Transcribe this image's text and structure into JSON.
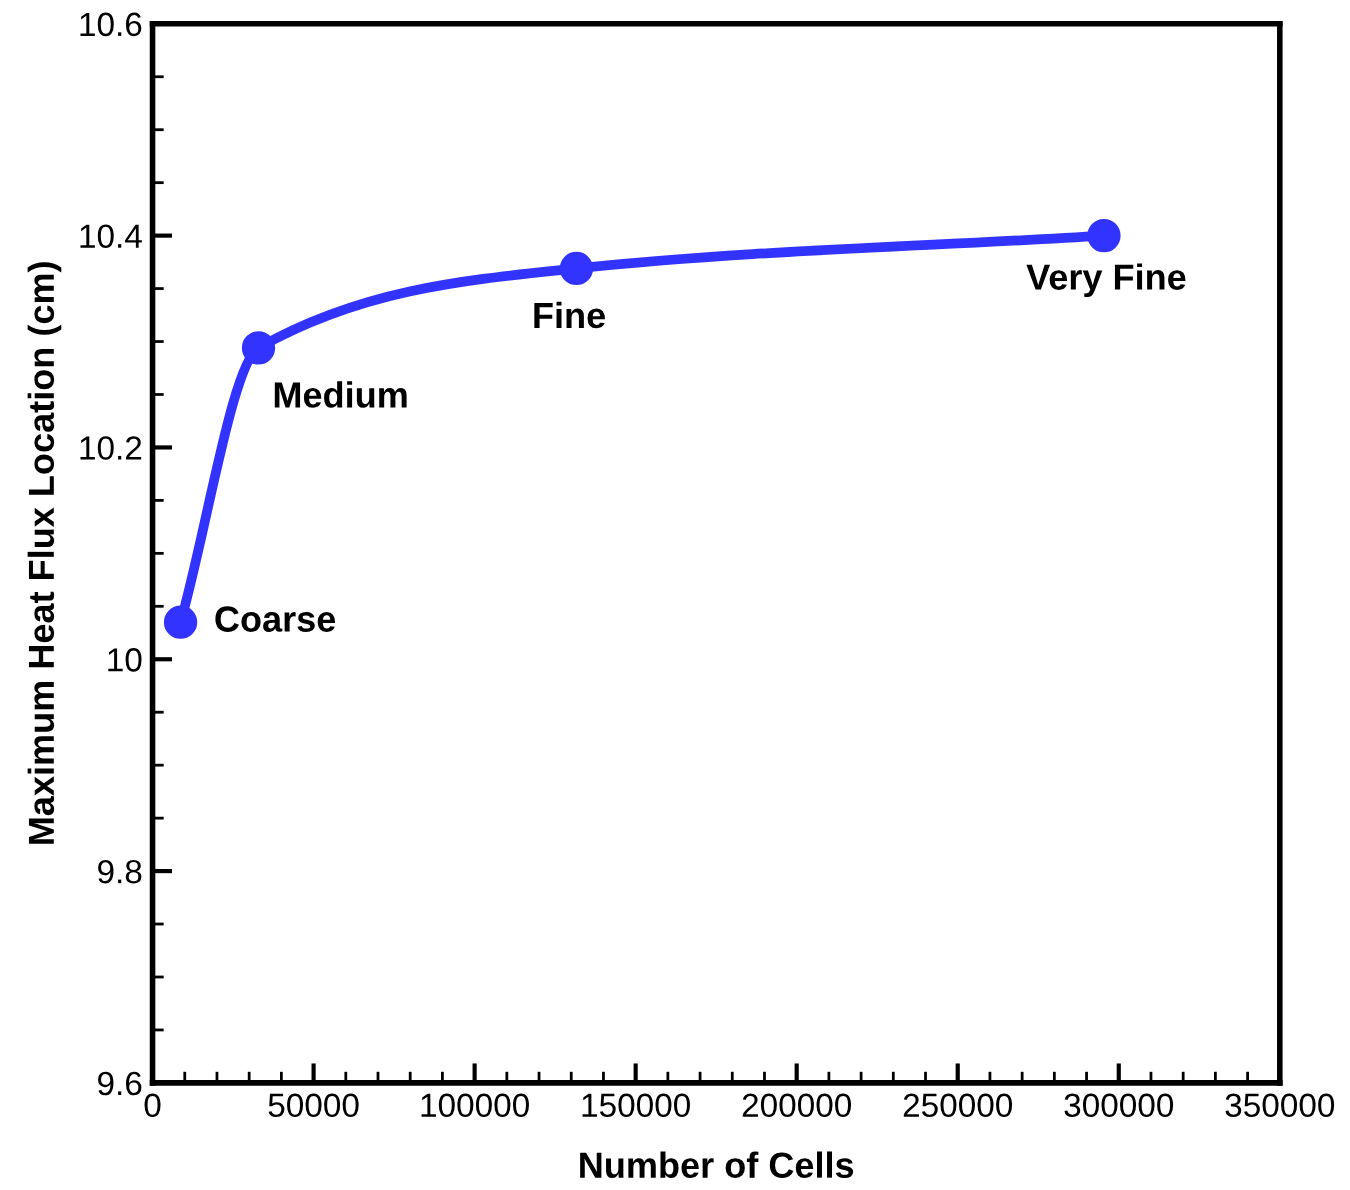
{
  "chart_data": {
    "type": "line",
    "xlabel": "Number of Cells",
    "ylabel": "Maximum Heat Flux Location (cm)",
    "x": [
      8700,
      32900,
      131600,
      295400
    ],
    "series": [
      {
        "color": "#3333ff",
        "values": [
          10.035,
          10.294,
          10.369,
          10.4
        ]
      }
    ],
    "marker": "circle",
    "line_style": "solid",
    "xlim": [
      0,
      350000
    ],
    "xticks": [
      0,
      50000,
      100000,
      150000,
      200000,
      250000,
      300000,
      350000
    ],
    "ylim": [
      9.6,
      10.6
    ],
    "yticks": [
      9.6,
      9.8,
      10,
      10.2,
      10.4,
      10.6
    ],
    "annotations": [
      {
        "text": "Coarse",
        "x": 8700,
        "y": 10.035
      },
      {
        "text": "Medium",
        "x": 32900,
        "y": 10.294
      },
      {
        "text": "Fine",
        "x": 131600,
        "y": 10.369
      },
      {
        "text": "Very Fine",
        "x": 295400,
        "y": 10.4
      }
    ]
  }
}
